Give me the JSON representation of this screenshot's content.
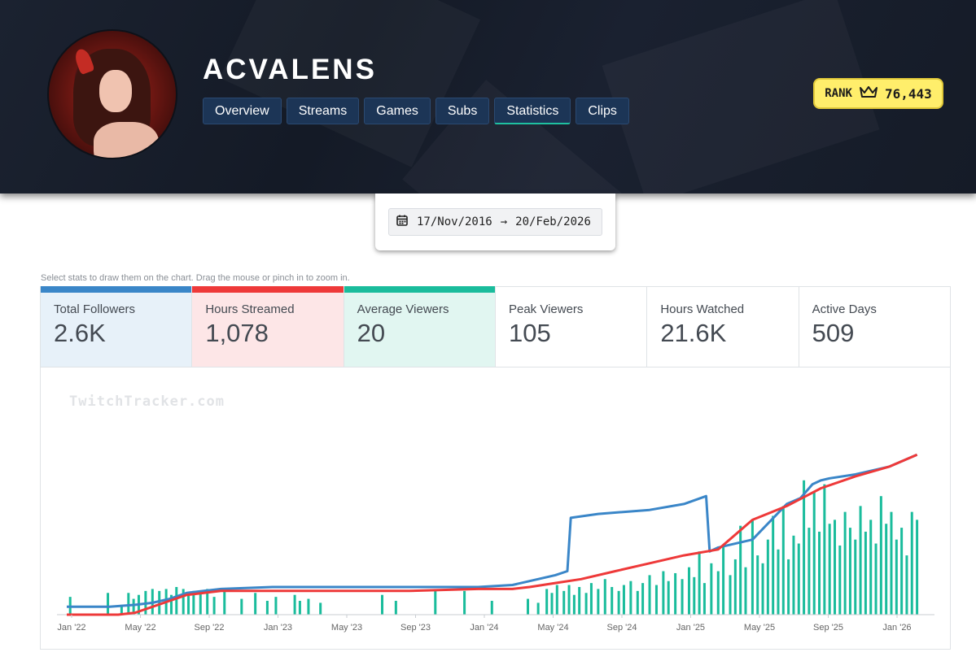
{
  "channel": {
    "name": "ACVALENS",
    "tabs": [
      {
        "label": "Overview"
      },
      {
        "label": "Streams"
      },
      {
        "label": "Games"
      },
      {
        "label": "Subs"
      },
      {
        "label": "Statistics",
        "active": true
      },
      {
        "label": "Clips"
      }
    ]
  },
  "rank": {
    "label": "RANK",
    "value": "76,443",
    "icon": "crown-icon"
  },
  "date_range": {
    "start": "17/Nov/2016",
    "arrow": "→",
    "end": "20/Feb/2026",
    "icon": "calendar-icon"
  },
  "stats_hint": "Select stats to draw them on the chart. Drag the mouse or pinch in to zoom in.",
  "stats": [
    {
      "label": "Total Followers",
      "value": "2.6K",
      "color": "#3a86c8",
      "bg": "#e7f1f9"
    },
    {
      "label": "Hours Streamed",
      "value": "1,078",
      "color": "#ee3939",
      "bg": "#fde6e7"
    },
    {
      "label": "Average Viewers",
      "value": "20",
      "color": "#1abc9c",
      "bg": "#e1f6f1"
    },
    {
      "label": "Peak Viewers",
      "value": "105"
    },
    {
      "label": "Hours Watched",
      "value": "21.6K"
    },
    {
      "label": "Active Days",
      "value": "509"
    }
  ],
  "watermark": "TwitchTracker.com",
  "chart_data": {
    "type": "line",
    "x_tick_labels": [
      "Jan '22",
      "May '22",
      "Sep '22",
      "Jan '23",
      "May '23",
      "Sep '23",
      "Jan '24",
      "May '24",
      "Sep '24",
      "Jan '25",
      "May '25",
      "Sep '25",
      "Jan '26"
    ],
    "xlim": [
      0,
      50
    ],
    "ylim": [
      0,
      100
    ],
    "colors": {
      "followers": "#3a86c8",
      "hours_streamed": "#ee3939",
      "average_viewers": "#1abc9c"
    },
    "series": [
      {
        "name": "Total Followers",
        "kind": "line",
        "x": [
          0,
          2.5,
          4,
          5,
          6,
          7,
          8,
          9,
          12,
          16,
          20,
          24,
          26,
          27,
          28.5,
          29.2,
          29.4,
          31,
          34,
          36,
          37.3,
          37.5,
          38,
          40,
          42,
          42.8,
          43.5,
          44,
          44.5,
          46,
          48,
          49.6
        ],
        "y": [
          4,
          4,
          5,
          6,
          8,
          11,
          12,
          13,
          14,
          14,
          14,
          14,
          15,
          17,
          20,
          22,
          49,
          51,
          53,
          56,
          60,
          32,
          34,
          38,
          56,
          59,
          66,
          68,
          69,
          71,
          75,
          81
        ]
      },
      {
        "name": "Hours Streamed",
        "kind": "line",
        "x": [
          0,
          1,
          2,
          3,
          4,
          5,
          6,
          7,
          9,
          12,
          16,
          20,
          24,
          26,
          27,
          28.5,
          30,
          32,
          34,
          36,
          38,
          40,
          42,
          44,
          46,
          48,
          49.6
        ],
        "y": [
          0,
          0,
          0,
          0,
          1,
          4,
          7,
          10,
          12,
          12,
          12,
          12,
          13,
          13,
          14,
          16,
          18,
          22,
          26,
          30,
          33,
          48,
          55,
          64,
          70,
          75,
          81
        ]
      },
      {
        "name": "Average Viewers",
        "kind": "bar",
        "x": [
          0.2,
          2.4,
          3.2,
          3.6,
          3.9,
          4.2,
          4.6,
          5.0,
          5.4,
          5.8,
          6.1,
          6.4,
          6.8,
          7.1,
          7.4,
          7.8,
          8.2,
          8.6,
          9.2,
          10.2,
          11.0,
          11.7,
          12.2,
          13.3,
          13.6,
          14.1,
          14.8,
          18.4,
          19.2,
          21.5,
          23.2,
          24.8,
          26.9,
          27.5,
          28.0,
          28.3,
          28.6,
          29.0,
          29.3,
          29.6,
          29.9,
          30.3,
          30.6,
          31.0,
          31.4,
          31.8,
          32.2,
          32.5,
          32.9,
          33.3,
          33.6,
          34.0,
          34.4,
          34.8,
          35.1,
          35.5,
          35.9,
          36.3,
          36.6,
          36.9,
          37.2,
          37.6,
          38.0,
          38.3,
          38.7,
          39.0,
          39.3,
          39.6,
          40.0,
          40.3,
          40.6,
          40.9,
          41.2,
          41.5,
          41.8,
          42.1,
          42.4,
          42.7,
          43.0,
          43.3,
          43.6,
          43.9,
          44.2,
          44.5,
          44.8,
          45.1,
          45.4,
          45.7,
          46.0,
          46.3,
          46.6,
          46.9,
          47.2,
          47.5,
          47.8,
          48.1,
          48.4,
          48.7,
          49.0,
          49.3,
          49.6
        ],
        "y": [
          9,
          11,
          5,
          11,
          8,
          10,
          12,
          13,
          12,
          13,
          10,
          14,
          13,
          10,
          12,
          11,
          13,
          9,
          12,
          8,
          11,
          7,
          9,
          10,
          7,
          8,
          6,
          10,
          7,
          12,
          12,
          7,
          8,
          6,
          13,
          11,
          15,
          12,
          15,
          10,
          14,
          11,
          16,
          13,
          18,
          14,
          12,
          15,
          17,
          12,
          16,
          20,
          15,
          22,
          17,
          21,
          18,
          24,
          19,
          32,
          16,
          26,
          22,
          35,
          20,
          28,
          45,
          24,
          48,
          30,
          26,
          38,
          50,
          33,
          55,
          28,
          40,
          36,
          68,
          44,
          62,
          42,
          66,
          46,
          48,
          35,
          52,
          44,
          38,
          55,
          42,
          48,
          36,
          60,
          46,
          52,
          38,
          44,
          30,
          52,
          48
        ]
      }
    ]
  }
}
